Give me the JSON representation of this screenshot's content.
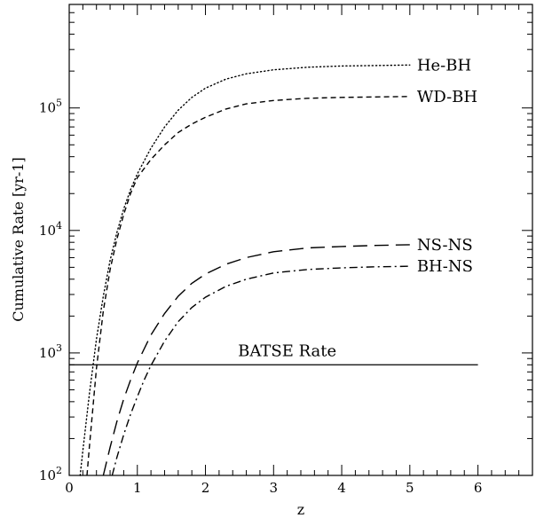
{
  "chart_data": {
    "type": "line",
    "title": "",
    "xlabel": "z",
    "ylabel": "Cumulative Rate [yr-1]",
    "xlim": [
      0,
      6.8
    ],
    "ylim": [
      100,
      700000
    ],
    "yscale": "log",
    "grid": false,
    "x_ticks": [
      0,
      1,
      2,
      3,
      4,
      5,
      6
    ],
    "x_tick_labels": [
      "0",
      "1",
      "2",
      "3",
      "4",
      "5",
      "6"
    ],
    "y_ticks": [
      100,
      1000,
      10000,
      100000
    ],
    "y_tick_labels": [
      {
        "base": "10",
        "exp": "2"
      },
      {
        "base": "10",
        "exp": "3"
      },
      {
        "base": "10",
        "exp": "4"
      },
      {
        "base": "10",
        "exp": "5"
      }
    ],
    "series": [
      {
        "name": "He-BH",
        "style": "dotted",
        "x": [
          0.16,
          0.2,
          0.3,
          0.4,
          0.5,
          0.6,
          0.7,
          0.8,
          0.9,
          1.0,
          1.2,
          1.4,
          1.6,
          1.8,
          2.0,
          2.3,
          2.6,
          3.0,
          3.5,
          4.0,
          4.5,
          5.0
        ],
        "y": [
          100,
          160,
          480,
          1300,
          2900,
          5700,
          9600,
          15000,
          21500,
          29000,
          47000,
          70000,
          96000,
          122000,
          145000,
          172000,
          190000,
          205000,
          215000,
          220000,
          222000,
          224000
        ]
      },
      {
        "name": "WD-BH",
        "style": "dashed",
        "x": [
          0.26,
          0.3,
          0.4,
          0.5,
          0.6,
          0.7,
          0.8,
          0.9,
          1.0,
          1.2,
          1.4,
          1.6,
          1.8,
          2.0,
          2.3,
          2.6,
          3.0,
          3.5,
          4.0,
          4.5,
          5.0
        ],
        "y": [
          100,
          180,
          750,
          2200,
          4800,
          8500,
          13500,
          20000,
          27000,
          38000,
          50000,
          63000,
          74000,
          84000,
          98000,
          108000,
          115000,
          120000,
          122000,
          123000,
          124000
        ]
      },
      {
        "name": "NS-NS",
        "style": "long-dashed",
        "x": [
          0.5,
          0.6,
          0.7,
          0.8,
          0.9,
          1.0,
          1.2,
          1.4,
          1.6,
          1.8,
          2.0,
          2.3,
          2.6,
          3.0,
          3.5,
          4.0,
          4.5,
          5.0
        ],
        "y": [
          100,
          170,
          275,
          420,
          600,
          830,
          1400,
          2100,
          2900,
          3700,
          4400,
          5300,
          6000,
          6700,
          7200,
          7400,
          7550,
          7650
        ]
      },
      {
        "name": "BH-NS",
        "style": "dash-dot",
        "x": [
          0.63,
          0.7,
          0.8,
          0.9,
          1.0,
          1.1,
          1.2,
          1.4,
          1.6,
          1.8,
          2.0,
          2.3,
          2.6,
          3.0,
          3.5,
          4.0,
          4.5,
          5.0
        ],
        "y": [
          100,
          140,
          215,
          315,
          440,
          600,
          790,
          1250,
          1800,
          2350,
          2850,
          3500,
          4000,
          4500,
          4800,
          4950,
          5050,
          5100
        ]
      }
    ],
    "annotations": [
      {
        "text": "BATSE Rate",
        "type": "hline",
        "y": 800,
        "x_range": [
          0,
          6
        ]
      }
    ]
  }
}
